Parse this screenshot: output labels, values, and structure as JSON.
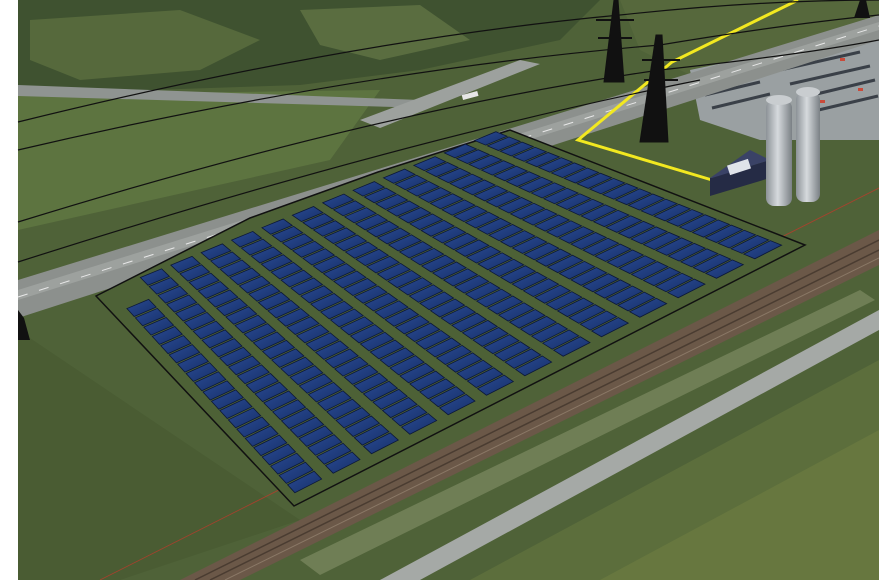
{
  "scene": {
    "kind": "aerial rendering",
    "subject": "solar-farm",
    "array": {
      "rows": 13,
      "panels_per_row": 22
    },
    "elements": [
      "highway",
      "transmission-lines",
      "pylons",
      "yellow-boundary-line",
      "inverter-building",
      "silos",
      "parking-lot",
      "railway",
      "field-road"
    ]
  },
  "colors": {
    "grass": "#4b5e36",
    "road": "#8a8f8c",
    "panel": "#1f3a7a",
    "panel_edge": "#0c1838",
    "boundary": "#f2e820",
    "outline": "#111111",
    "silo": "#b9bec2",
    "building": "#2c3350",
    "rail": "#6d5a49"
  }
}
